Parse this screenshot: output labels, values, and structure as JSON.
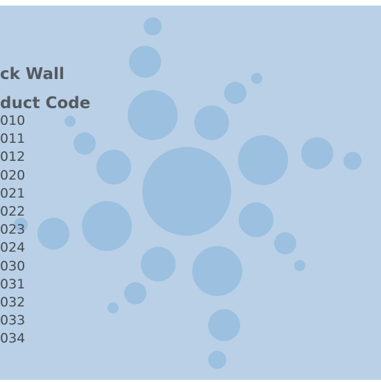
{
  "header": {
    "line1": "ck Wall",
    "line2": "duct Code"
  },
  "codes": [
    "010",
    "011",
    "012",
    "020",
    "021",
    "022",
    "023",
    "024",
    "030",
    "031",
    "032",
    "033",
    "034"
  ]
}
